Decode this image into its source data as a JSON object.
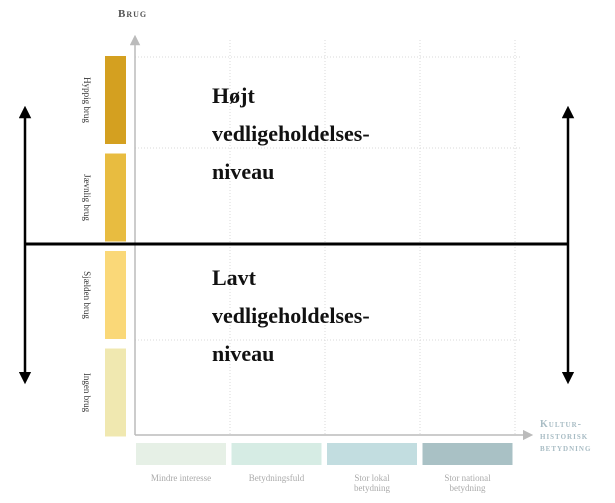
{
  "y_axis": {
    "title": "Brug",
    "categories": [
      "Hyppig brug",
      "Jævnlig brug",
      "Sjælden brug",
      "Ingen brug"
    ]
  },
  "x_axis": {
    "title_lines": [
      "Kultur-",
      "historisk",
      "betydning"
    ],
    "categories": [
      [
        "Mindre interesse"
      ],
      [
        "Betydningsfuld"
      ],
      [
        "Stor lokal",
        "betydning"
      ],
      [
        "Stor national",
        "betydning"
      ]
    ]
  },
  "regions": [
    {
      "lines": [
        "Højt",
        "vedligeholdelses-",
        "niveau"
      ]
    },
    {
      "lines": [
        "Lavt",
        "vedligeholdelses-",
        "niveau"
      ]
    }
  ]
}
